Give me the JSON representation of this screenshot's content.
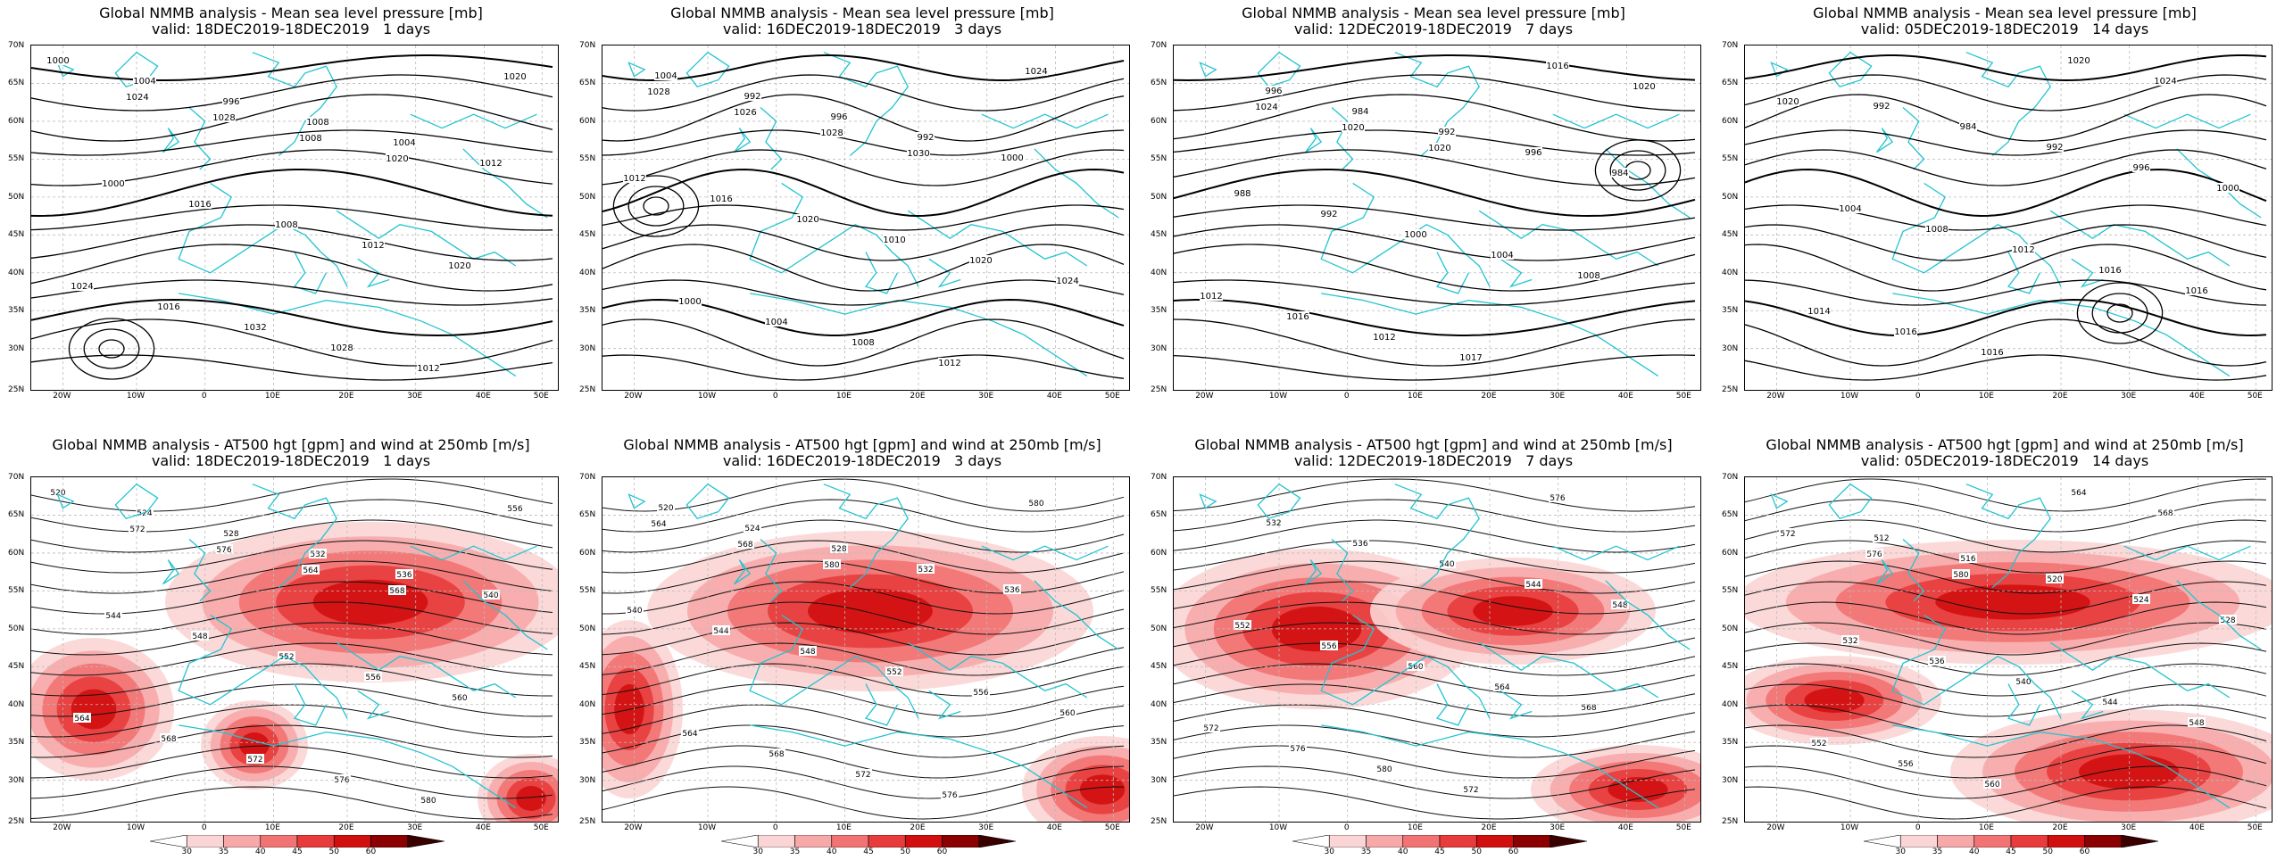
{
  "top_row": {
    "title_prefix": "Global NMMB analysis - Mean sea level pressure [mb]",
    "panels": [
      {
        "subtitle": "valid: 18DEC2019-18DEC2019   1 days",
        "contour_labels": [
          "1000",
          "1004",
          "996",
          "1008",
          "1004",
          "1012",
          "1000",
          "1016",
          "1008",
          "1012",
          "1020",
          "1024",
          "1016",
          "1032",
          "1028",
          "1012",
          "1020",
          "1024",
          "1028",
          "1008",
          "1020"
        ]
      },
      {
        "subtitle": "valid: 16DEC2019-18DEC2019   3 days",
        "contour_labels": [
          "1004",
          "992",
          "996",
          "992",
          "1000",
          "1012",
          "1016",
          "1020",
          "1010",
          "1020",
          "1024",
          "1000",
          "1004",
          "1008",
          "1012",
          "1024",
          "1028",
          "1026",
          "1028",
          "1030"
        ]
      },
      {
        "subtitle": "valid: 12DEC2019-18DEC2019   7 days",
        "contour_labels": [
          "996",
          "984",
          "992",
          "996",
          "984",
          "988",
          "992",
          "1000",
          "1004",
          "1008",
          "1012",
          "1016",
          "1012",
          "1017",
          "1016",
          "1020",
          "1024",
          "1020",
          "1020"
        ]
      },
      {
        "subtitle": "valid: 05DEC2019-18DEC2019   14 days",
        "contour_labels": [
          "992",
          "984",
          "992",
          "996",
          "1000",
          "1004",
          "1008",
          "1012",
          "1016",
          "1016",
          "1014",
          "1016",
          "1016",
          "1020",
          "1024",
          "1020"
        ]
      }
    ]
  },
  "bottom_row": {
    "title_prefix": "Global NMMB analysis - AT500 hgt [gpm] and wind at 250mb [m/s]",
    "panels": [
      {
        "subtitle": "valid: 18DEC2019-18DEC2019   1 days",
        "contour_labels": [
          "520",
          "524",
          "528",
          "532",
          "536",
          "540",
          "544",
          "548",
          "552",
          "556",
          "560",
          "564",
          "568",
          "572",
          "576",
          "580",
          "556",
          "572",
          "576",
          "564",
          "568"
        ]
      },
      {
        "subtitle": "valid: 16DEC2019-18DEC2019   3 days",
        "contour_labels": [
          "520",
          "524",
          "528",
          "532",
          "536",
          "540",
          "544",
          "548",
          "552",
          "556",
          "560",
          "564",
          "568",
          "572",
          "576",
          "580",
          "564",
          "568",
          "580"
        ]
      },
      {
        "subtitle": "valid: 12DEC2019-18DEC2019   7 days",
        "contour_labels": [
          "532",
          "536",
          "540",
          "544",
          "548",
          "552",
          "556",
          "560",
          "564",
          "568",
          "572",
          "576",
          "580",
          "572",
          "576"
        ]
      },
      {
        "subtitle": "valid: 05DEC2019-18DEC2019   14 days",
        "contour_labels": [
          "512",
          "516",
          "520",
          "524",
          "528",
          "532",
          "536",
          "540",
          "544",
          "548",
          "552",
          "556",
          "560",
          "564",
          "568",
          "572",
          "576",
          "580"
        ]
      }
    ]
  },
  "axes": {
    "lat_labels": [
      "70N",
      "65N",
      "60N",
      "55N",
      "50N",
      "45N",
      "40N",
      "35N",
      "30N",
      "25N"
    ],
    "lon_labels": [
      "20W",
      "10W",
      "0",
      "10E",
      "20E",
      "30E",
      "40E",
      "50E"
    ]
  },
  "colorbar": {
    "labels": [
      "30",
      "35",
      "40",
      "45",
      "50",
      "60"
    ],
    "colors": [
      "#ffffff",
      "#fbd5d5",
      "#f7a8a8",
      "#f27373",
      "#e83c3c",
      "#d10f0f",
      "#8b0000",
      "#3a0000"
    ]
  },
  "colors": {
    "coast": "#22c4d0",
    "contour": "#000000",
    "grid": "#bbbbbb"
  }
}
